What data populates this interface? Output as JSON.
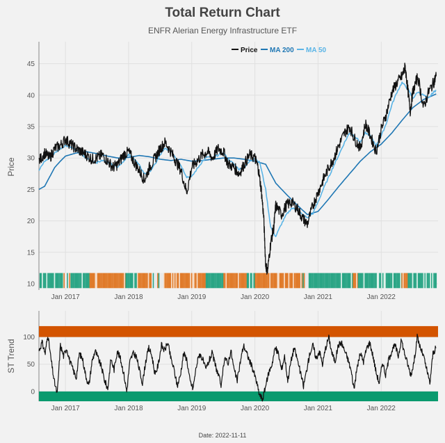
{
  "header": {
    "title": "Total Return Chart",
    "subtitle": "ENFR Alerian Energy Infrastructure ETF"
  },
  "footer": {
    "date_label": "Date: 2022-11-11"
  },
  "colors": {
    "price": "#111111",
    "ma200": "#1f77b4",
    "ma50": "#5ab4e6",
    "bull": "#2aa585",
    "bear": "#e07b2a",
    "st_upper_band": "#d35400",
    "st_lower_band": "#0a9a6e"
  },
  "chart_data": [
    {
      "type": "line",
      "id": "price-panel",
      "title": "Total Return Chart",
      "ylabel": "Price",
      "xlabel": "",
      "ylim": [
        9,
        48.5
      ],
      "xlim": [
        2016.58,
        2022.9
      ],
      "x_ticks": [
        {
          "label": "Jan 2017",
          "x": 2017.0
        },
        {
          "label": "Jan 2018",
          "x": 2018.0
        },
        {
          "label": "Jan 2019",
          "x": 2019.0
        },
        {
          "label": "Jan 2020",
          "x": 2020.0
        },
        {
          "label": "Jan 2021",
          "x": 2021.0
        },
        {
          "label": "Jan 2022",
          "x": 2022.0
        }
      ],
      "y_ticks": [
        10,
        15,
        20,
        25,
        30,
        35,
        40,
        45
      ],
      "legend": {
        "placement": "top-right",
        "entries": [
          "Price",
          "MA 200",
          "MA 50"
        ]
      },
      "grid": true,
      "series": [
        {
          "name": "Price",
          "x": [
            2016.58,
            2016.67,
            2016.75,
            2016.83,
            2016.92,
            2017.0,
            2017.08,
            2017.17,
            2017.25,
            2017.33,
            2017.42,
            2017.5,
            2017.58,
            2017.67,
            2017.75,
            2017.83,
            2017.92,
            2018.0,
            2018.08,
            2018.17,
            2018.25,
            2018.33,
            2018.42,
            2018.5,
            2018.58,
            2018.67,
            2018.75,
            2018.83,
            2018.92,
            2019.0,
            2019.08,
            2019.17,
            2019.25,
            2019.33,
            2019.42,
            2019.5,
            2019.58,
            2019.67,
            2019.75,
            2019.83,
            2019.92,
            2020.0,
            2020.05,
            2020.1,
            2020.14,
            2020.17,
            2020.2,
            2020.25,
            2020.3,
            2020.33,
            2020.42,
            2020.5,
            2020.58,
            2020.67,
            2020.75,
            2020.83,
            2020.92,
            2021.0,
            2021.08,
            2021.17,
            2021.25,
            2021.33,
            2021.42,
            2021.5,
            2021.58,
            2021.67,
            2021.75,
            2021.83,
            2021.92,
            2022.0,
            2022.08,
            2022.17,
            2022.25,
            2022.33,
            2022.38,
            2022.42,
            2022.46,
            2022.5,
            2022.58,
            2022.67,
            2022.75,
            2022.83,
            2022.87
          ],
          "values": [
            29.5,
            30.8,
            30.0,
            31.5,
            32.0,
            33.0,
            32.2,
            31.5,
            31.0,
            30.5,
            29.8,
            30.0,
            30.5,
            29.5,
            28.5,
            29.0,
            30.5,
            31.0,
            29.5,
            28.0,
            26.5,
            28.5,
            30.0,
            31.5,
            32.5,
            31.0,
            29.5,
            28.0,
            24.5,
            28.5,
            29.5,
            30.5,
            31.0,
            30.0,
            31.5,
            31.0,
            29.0,
            28.5,
            27.5,
            29.0,
            30.5,
            30.0,
            28.5,
            25.0,
            20.5,
            13.0,
            12.0,
            16.5,
            19.0,
            22.5,
            21.0,
            22.5,
            23.0,
            22.0,
            20.5,
            19.5,
            22.5,
            24.5,
            26.5,
            28.5,
            30.0,
            32.0,
            34.0,
            35.0,
            33.0,
            31.5,
            35.5,
            33.5,
            31.0,
            34.5,
            37.0,
            40.5,
            42.0,
            43.0,
            44.5,
            41.0,
            37.5,
            40.5,
            43.0,
            38.0,
            40.5,
            42.0,
            43.0
          ]
        },
        {
          "name": "MA 200",
          "x": [
            2016.58,
            2016.67,
            2016.75,
            2016.83,
            2016.92,
            2017.0,
            2017.17,
            2017.33,
            2017.5,
            2017.67,
            2017.83,
            2018.0,
            2018.17,
            2018.33,
            2018.5,
            2018.67,
            2018.83,
            2019.0,
            2019.17,
            2019.33,
            2019.5,
            2019.67,
            2019.83,
            2020.0,
            2020.17,
            2020.33,
            2020.5,
            2020.67,
            2020.83,
            2021.0,
            2021.17,
            2021.33,
            2021.5,
            2021.67,
            2021.83,
            2022.0,
            2022.17,
            2022.33,
            2022.5,
            2022.67,
            2022.83,
            2022.87
          ],
          "values": [
            25.0,
            25.5,
            27.0,
            28.5,
            29.5,
            30.3,
            30.8,
            31.0,
            30.7,
            30.3,
            30.0,
            30.1,
            30.4,
            30.2,
            29.8,
            29.6,
            29.8,
            29.5,
            29.6,
            29.8,
            30.0,
            30.0,
            29.8,
            29.5,
            29.0,
            26.0,
            24.2,
            22.5,
            21.0,
            21.5,
            23.5,
            25.5,
            27.5,
            29.5,
            31.0,
            32.2,
            34.0,
            36.0,
            38.0,
            39.3,
            40.0,
            40.2
          ]
        },
        {
          "name": "MA 50",
          "x": [
            2016.58,
            2016.67,
            2016.75,
            2016.83,
            2016.92,
            2017.0,
            2017.08,
            2017.17,
            2017.25,
            2017.33,
            2017.42,
            2017.5,
            2017.58,
            2017.67,
            2017.75,
            2017.83,
            2017.92,
            2018.0,
            2018.08,
            2018.17,
            2018.25,
            2018.33,
            2018.42,
            2018.5,
            2018.58,
            2018.67,
            2018.75,
            2018.83,
            2018.92,
            2019.0,
            2019.08,
            2019.17,
            2019.25,
            2019.33,
            2019.42,
            2019.5,
            2019.58,
            2019.67,
            2019.75,
            2019.83,
            2019.92,
            2020.0,
            2020.08,
            2020.17,
            2020.25,
            2020.33,
            2020.42,
            2020.5,
            2020.58,
            2020.67,
            2020.75,
            2020.83,
            2020.92,
            2021.0,
            2021.08,
            2021.17,
            2021.25,
            2021.33,
            2021.42,
            2021.5,
            2021.58,
            2021.67,
            2021.75,
            2021.83,
            2021.92,
            2022.0,
            2022.08,
            2022.17,
            2022.25,
            2022.33,
            2022.42,
            2022.5,
            2022.58,
            2022.67,
            2022.75,
            2022.83,
            2022.87
          ],
          "values": [
            28.0,
            29.5,
            30.0,
            30.8,
            31.5,
            32.0,
            31.8,
            31.2,
            30.5,
            30.0,
            29.5,
            29.3,
            29.6,
            29.4,
            29.0,
            28.6,
            29.5,
            30.5,
            30.0,
            28.8,
            27.5,
            27.8,
            29.0,
            30.5,
            31.5,
            31.2,
            30.0,
            28.8,
            27.0,
            27.0,
            28.2,
            29.5,
            30.2,
            30.0,
            30.5,
            30.8,
            29.8,
            29.0,
            28.2,
            28.5,
            29.5,
            30.0,
            29.2,
            25.0,
            19.0,
            17.5,
            19.5,
            21.0,
            22.0,
            21.8,
            21.0,
            20.5,
            21.2,
            23.0,
            25.0,
            27.0,
            28.8,
            30.5,
            32.5,
            34.0,
            33.5,
            32.5,
            34.0,
            33.5,
            32.0,
            33.5,
            35.5,
            38.5,
            40.5,
            42.0,
            41.0,
            39.5,
            40.5,
            40.0,
            39.5,
            40.5,
            40.8
          ]
        }
      ],
      "regime_strip": {
        "ylim": [
          9.3,
          11.7
        ],
        "segments": [
          {
            "from": 2016.59,
            "to": 2016.97,
            "state": "bull"
          },
          {
            "from": 2016.97,
            "to": 2017.08,
            "state": "mixed"
          },
          {
            "from": 2017.08,
            "to": 2017.38,
            "state": "bull"
          },
          {
            "from": 2017.38,
            "to": 2017.45,
            "state": "bear"
          },
          {
            "from": 2017.45,
            "to": 2017.95,
            "state": "bear"
          },
          {
            "from": 2017.95,
            "to": 2018.13,
            "state": "bull"
          },
          {
            "from": 2018.13,
            "to": 2018.33,
            "state": "bear"
          },
          {
            "from": 2018.33,
            "to": 2018.55,
            "state": "mixed"
          },
          {
            "from": 2018.55,
            "to": 2018.83,
            "state": "bear"
          },
          {
            "from": 2018.83,
            "to": 2019.22,
            "state": "bear"
          },
          {
            "from": 2019.22,
            "to": 2019.5,
            "state": "bull"
          },
          {
            "from": 2019.5,
            "to": 2019.87,
            "state": "bear"
          },
          {
            "from": 2019.87,
            "to": 2020.0,
            "state": "bull"
          },
          {
            "from": 2020.0,
            "to": 2020.72,
            "state": "bear"
          },
          {
            "from": 2020.72,
            "to": 2020.85,
            "state": "mixed"
          },
          {
            "from": 2020.85,
            "to": 2021.55,
            "state": "bull"
          },
          {
            "from": 2021.55,
            "to": 2021.63,
            "state": "bear"
          },
          {
            "from": 2021.63,
            "to": 2022.32,
            "state": "bull"
          },
          {
            "from": 2022.32,
            "to": 2022.42,
            "state": "bear"
          },
          {
            "from": 2022.42,
            "to": 2022.87,
            "state": "bull"
          }
        ]
      }
    },
    {
      "type": "line",
      "id": "st-trend-panel",
      "ylabel": "ST Trend",
      "xlabel": "",
      "ylim": [
        -18,
        148
      ],
      "xlim": [
        2016.58,
        2022.9
      ],
      "y_ticks": [
        0,
        50,
        100
      ],
      "x_ticks": [
        {
          "label": "Jan 2017",
          "x": 2017.0
        },
        {
          "label": "Jan 2018",
          "x": 2018.0
        },
        {
          "label": "Jan 2019",
          "x": 2019.0
        },
        {
          "label": "Jan 2020",
          "x": 2020.0
        },
        {
          "label": "Jan 2021",
          "x": 2021.0
        },
        {
          "label": "Jan 2022",
          "x": 2022.0
        }
      ],
      "bands": [
        {
          "name": "overbought",
          "from": 100,
          "to": 120,
          "color_key": "st_upper_band"
        },
        {
          "name": "oversold",
          "from": -20,
          "to": 0,
          "color_key": "st_lower_band"
        }
      ],
      "series": [
        {
          "name": "ST Trend",
          "x": [
            2016.58,
            2016.63,
            2016.68,
            2016.72,
            2016.77,
            2016.82,
            2016.87,
            2016.92,
            2016.97,
            2017.02,
            2017.07,
            2017.12,
            2017.17,
            2017.22,
            2017.27,
            2017.32,
            2017.37,
            2017.42,
            2017.47,
            2017.52,
            2017.57,
            2017.62,
            2017.67,
            2017.72,
            2017.77,
            2017.82,
            2017.87,
            2017.92,
            2017.97,
            2018.02,
            2018.07,
            2018.12,
            2018.17,
            2018.22,
            2018.27,
            2018.32,
            2018.37,
            2018.42,
            2018.47,
            2018.52,
            2018.57,
            2018.62,
            2018.67,
            2018.72,
            2018.77,
            2018.82,
            2018.87,
            2018.92,
            2018.97,
            2019.02,
            2019.07,
            2019.12,
            2019.17,
            2019.22,
            2019.27,
            2019.32,
            2019.37,
            2019.42,
            2019.47,
            2019.52,
            2019.57,
            2019.62,
            2019.67,
            2019.72,
            2019.77,
            2019.82,
            2019.87,
            2019.92,
            2019.97,
            2020.02,
            2020.07,
            2020.12,
            2020.17,
            2020.22,
            2020.27,
            2020.32,
            2020.37,
            2020.42,
            2020.47,
            2020.52,
            2020.57,
            2020.62,
            2020.67,
            2020.72,
            2020.77,
            2020.82,
            2020.87,
            2020.92,
            2020.97,
            2021.02,
            2021.07,
            2021.12,
            2021.17,
            2021.22,
            2021.27,
            2021.32,
            2021.37,
            2021.42,
            2021.47,
            2021.52,
            2021.57,
            2021.62,
            2021.67,
            2021.72,
            2021.77,
            2021.82,
            2021.87,
            2021.92,
            2021.97,
            2022.02,
            2022.07,
            2022.12,
            2022.17,
            2022.22,
            2022.27,
            2022.32,
            2022.37,
            2022.42,
            2022.47,
            2022.52,
            2022.57,
            2022.62,
            2022.67,
            2022.72,
            2022.77,
            2022.82,
            2022.87
          ],
          "values": [
            75,
            90,
            70,
            105,
            60,
            20,
            -5,
            85,
            65,
            80,
            55,
            40,
            25,
            70,
            60,
            30,
            10,
            55,
            75,
            60,
            45,
            20,
            5,
            60,
            40,
            75,
            60,
            35,
            0,
            55,
            70,
            65,
            40,
            15,
            55,
            80,
            65,
            30,
            50,
            85,
            75,
            90,
            60,
            40,
            10,
            30,
            70,
            60,
            20,
            5,
            45,
            70,
            60,
            40,
            55,
            70,
            50,
            30,
            10,
            65,
            50,
            75,
            40,
            20,
            55,
            85,
            70,
            55,
            40,
            20,
            -5,
            -15,
            10,
            35,
            50,
            80,
            70,
            40,
            65,
            20,
            55,
            80,
            60,
            35,
            10,
            40,
            70,
            85,
            60,
            75,
            50,
            80,
            100,
            70,
            55,
            85,
            90,
            75,
            60,
            40,
            5,
            45,
            70,
            55,
            80,
            90,
            65,
            35,
            15,
            55,
            30,
            60,
            75,
            85,
            65,
            95,
            70,
            50,
            30,
            55,
            100,
            80,
            65,
            40,
            15,
            70,
            80
          ]
        }
      ]
    }
  ]
}
